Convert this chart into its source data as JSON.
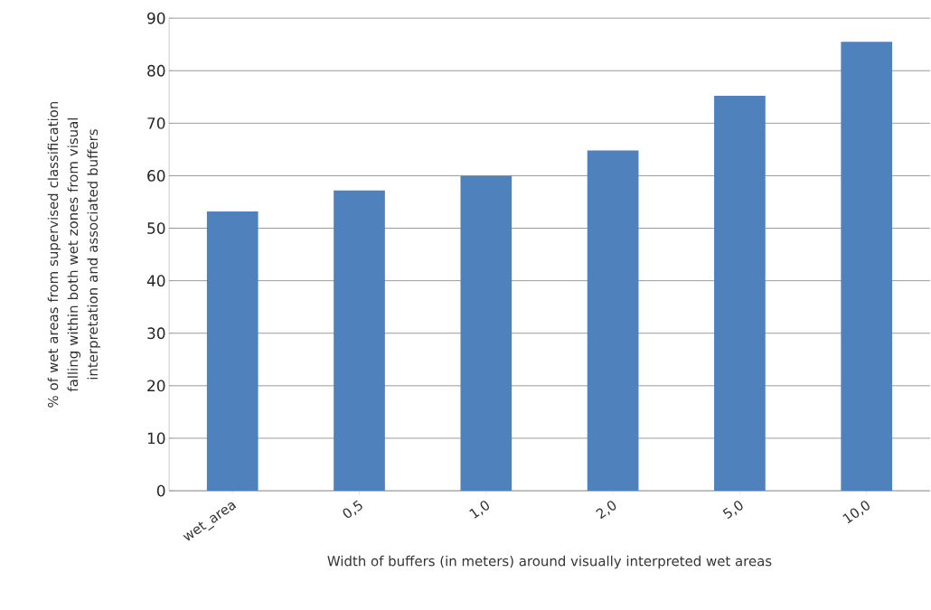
{
  "chart_data": {
    "type": "bar",
    "xlabel": "Width of buffers (in meters)  around visually interpreted wet areas",
    "ylabel": "% of wet areas from supervised classification falling within both wet zones from visual interpretation and associated buffers",
    "categories": [
      "wet_area",
      "0,5",
      "1,0",
      "2,0",
      "5,0",
      "10,0"
    ],
    "values": [
      53.2,
      57.2,
      60.0,
      64.8,
      75.2,
      85.5
    ],
    "color": "#4f81bd",
    "ylim": [
      0,
      90
    ],
    "yticks": [
      0,
      10,
      20,
      30,
      40,
      50,
      60,
      70,
      80,
      90
    ],
    "grid": "y"
  }
}
